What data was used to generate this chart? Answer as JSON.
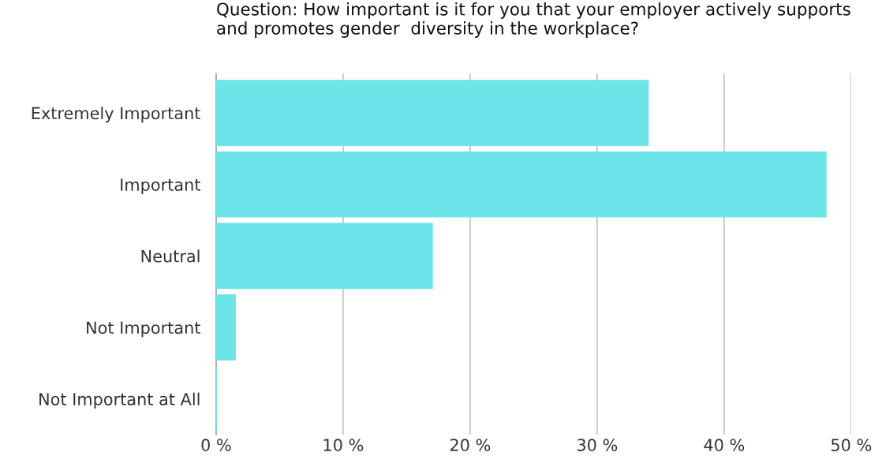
{
  "chart_data": {
    "type": "bar",
    "orientation": "horizontal",
    "title": "Question: How important is it for you that your employer actively supports and promotes gender  diversity in the workplace?",
    "categories": [
      "Extremely Important",
      "Important",
      "Neutral",
      "Not Important",
      "Not Important at All"
    ],
    "values": [
      34,
      48,
      17,
      1.5,
      0
    ],
    "color": "#6ce5e8",
    "xlim": [
      0,
      50
    ],
    "xticks": [
      {
        "value": 0,
        "label": "0 %"
      },
      {
        "value": 10,
        "label": "10 %"
      },
      {
        "value": 20,
        "label": "20 %"
      },
      {
        "value": 30,
        "label": "30 %"
      },
      {
        "value": 40,
        "label": "40 %"
      },
      {
        "value": 50,
        "label": "50 %"
      }
    ],
    "grid": "x"
  }
}
